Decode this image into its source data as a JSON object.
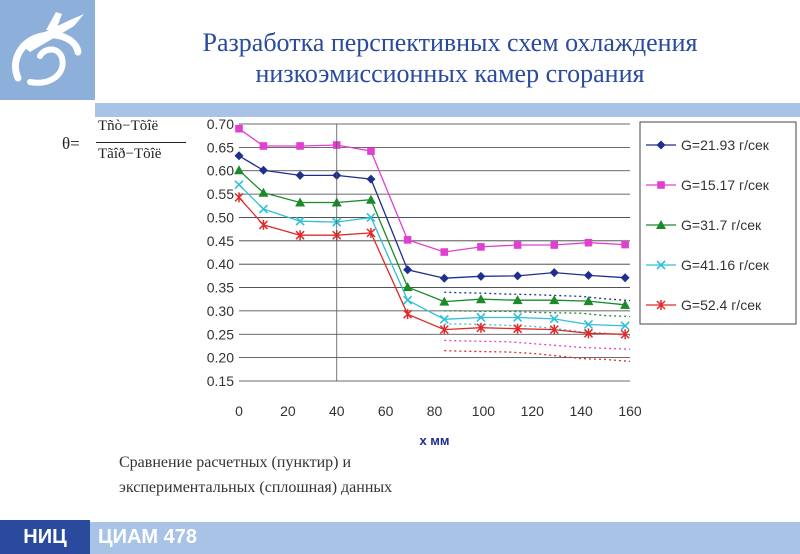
{
  "title_line1": "Разработка перспективных схем охлаждения",
  "title_line2": "низкоэмиссионных камер сгорания",
  "formula": {
    "lhs": "θ=",
    "numerator": "Tñò−Tõîë",
    "denominator": "Tãîð−Tõîë"
  },
  "caption_line1": "Сравнение расчетных (пунктир) и",
  "caption_line2": "экспериментальных (сплошная) данных",
  "footer": {
    "left": "НИЦ",
    "org": "ЦИАМ",
    "page": "478"
  },
  "colors": {
    "accent_blue": "#2a4a9e",
    "light_blue": "#a9c3e6",
    "logo_blue": "#8cb0da"
  },
  "chart_data": {
    "type": "line",
    "xlabel": "х мм",
    "ylabel": "",
    "xlim": [
      0,
      160
    ],
    "ylim": [
      0.15,
      0.7
    ],
    "x_ticks": [
      0,
      20,
      40,
      60,
      80,
      100,
      120,
      140,
      160
    ],
    "y_ticks": [
      0.15,
      0.2,
      0.25,
      0.3,
      0.35,
      0.4,
      0.45,
      0.5,
      0.55,
      0.6,
      0.65,
      0.7
    ],
    "y_tick_labels": [
      "0.15",
      "0.20",
      "0.25",
      "0.30",
      "0.35",
      "0.40",
      "0.45",
      "0.50",
      "0.55",
      "0.60",
      "0.65",
      "0.70"
    ],
    "grid": "horizontal",
    "legend_position": "right",
    "marker_x": [
      0,
      10,
      25,
      40,
      54,
      69,
      84,
      99,
      114,
      129,
      143,
      158
    ],
    "series": [
      {
        "name": "G=21.93 г/сек",
        "color": "#1f2f8f",
        "marker": "diamond",
        "values": [
          0.632,
          0.601,
          0.59,
          0.59,
          0.582,
          0.388,
          0.37,
          0.374,
          0.375,
          0.382,
          0.376,
          0.371
        ]
      },
      {
        "name": "G=15.17 г/сек",
        "color": "#e040d0",
        "marker": "square",
        "values": [
          0.69,
          0.653,
          0.653,
          0.655,
          0.642,
          0.452,
          0.426,
          0.437,
          0.441,
          0.441,
          0.446,
          0.442
        ]
      },
      {
        "name": "G=31.7 г/сек",
        "color": "#1a8a2a",
        "marker": "triangle",
        "values": [
          0.601,
          0.553,
          0.532,
          0.532,
          0.538,
          0.351,
          0.32,
          0.325,
          0.323,
          0.323,
          0.321,
          0.313
        ]
      },
      {
        "name": "G=41.16 г/сек",
        "color": "#30c0d8",
        "marker": "x",
        "values": [
          0.57,
          0.518,
          0.492,
          0.49,
          0.5,
          0.323,
          0.282,
          0.286,
          0.286,
          0.283,
          0.271,
          0.268
        ]
      },
      {
        "name": "G=52.4 г/сек",
        "color": "#e02a2a",
        "marker": "star",
        "values": [
          0.543,
          0.484,
          0.462,
          0.462,
          0.467,
          0.293,
          0.26,
          0.264,
          0.262,
          0.26,
          0.252,
          0.25
        ]
      }
    ],
    "calculated_x": [
      84,
      90,
      100,
      110,
      120,
      130,
      140,
      150,
      160
    ],
    "calculated_series": [
      {
        "color": "#1f2f8f",
        "values": [
          0.34,
          0.339,
          0.338,
          0.336,
          0.335,
          0.333,
          0.331,
          0.326,
          0.322
        ]
      },
      {
        "color": "#1a8a2a",
        "values": [
          0.3,
          0.3,
          0.299,
          0.299,
          0.297,
          0.296,
          0.295,
          0.29,
          0.288
        ]
      },
      {
        "color": "#30c0d8",
        "values": [
          0.272,
          0.272,
          0.271,
          0.269,
          0.267,
          0.262,
          0.255,
          0.252,
          0.247
        ]
      },
      {
        "color": "#e040d0",
        "values": [
          0.237,
          0.236,
          0.235,
          0.234,
          0.23,
          0.226,
          0.222,
          0.22,
          0.218
        ]
      },
      {
        "color": "#e02a2a",
        "values": [
          0.215,
          0.214,
          0.213,
          0.212,
          0.209,
          0.204,
          0.198,
          0.196,
          0.192
        ]
      }
    ]
  }
}
